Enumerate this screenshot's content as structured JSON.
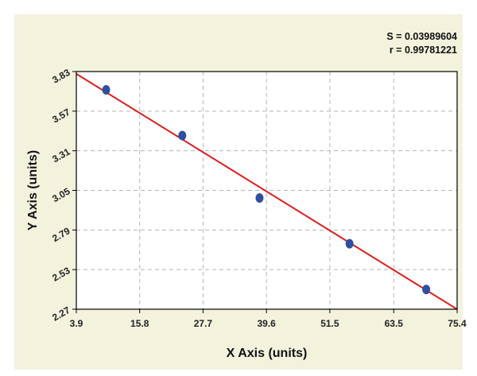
{
  "chart_data": {
    "type": "scatter",
    "xlabel": "X Axis (units)",
    "ylabel": "Y Axis (units)",
    "xlim": [
      3.9,
      75.4
    ],
    "ylim": [
      2.27,
      3.83
    ],
    "x_ticks": [
      "3.9",
      "15.8",
      "27.7",
      "39.6",
      "51.5",
      "63.5",
      "75.4"
    ],
    "y_ticks": [
      "2.27",
      "2.53",
      "2.79",
      "3.05",
      "3.31",
      "3.57",
      "3.83"
    ],
    "grid": true,
    "stats": [
      "S = 0.03989604",
      "r = 0.99781221"
    ],
    "points": [
      {
        "x": 9.5,
        "y": 3.71
      },
      {
        "x": 23.8,
        "y": 3.41
      },
      {
        "x": 38.3,
        "y": 3.0
      },
      {
        "x": 55.2,
        "y": 2.7
      },
      {
        "x": 69.6,
        "y": 2.4
      }
    ],
    "fit_line": {
      "x": [
        3.9,
        75.4
      ],
      "y": [
        3.815,
        2.27
      ]
    },
    "colors": {
      "background": "#f3f2dd",
      "plot_area": "#ffffff",
      "grid": "#b5b5b5",
      "points": "#2f4f9f",
      "line": "#dd1f1f",
      "axes": "#000000"
    }
  }
}
